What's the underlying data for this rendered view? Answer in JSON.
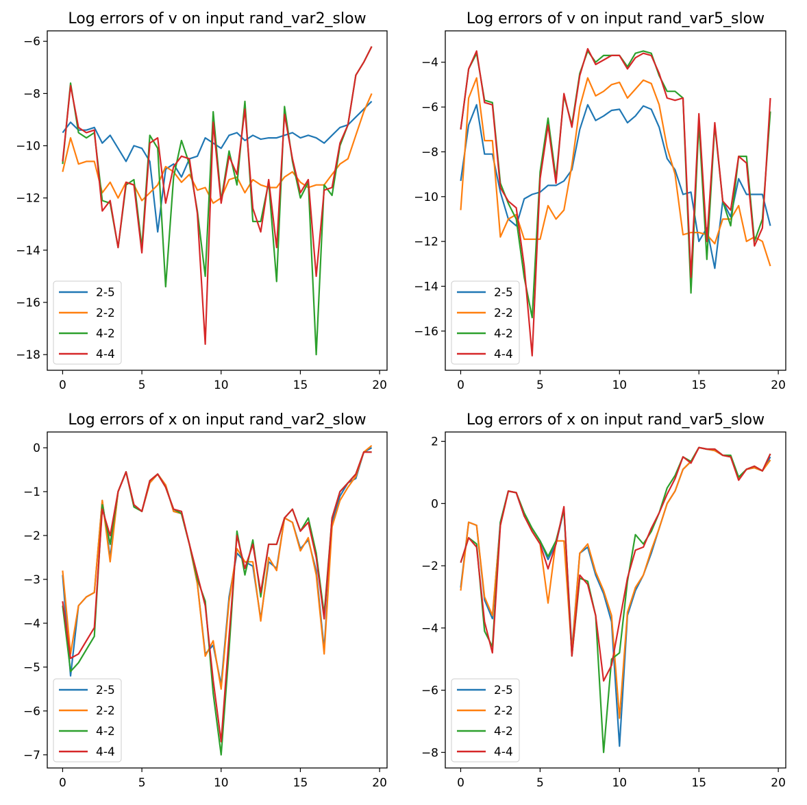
{
  "colors": {
    "2-5": "#1f77b4",
    "2-2": "#ff7f0e",
    "4-2": "#2ca02c",
    "4-4": "#d62728"
  },
  "chart_data": [
    {
      "type": "line",
      "title": "Log errors of v on input rand_var2_slow",
      "xlabel": "",
      "ylabel": "",
      "xlim": [
        -0.97,
        20.47
      ],
      "ylim": [
        -18.6,
        -5.6
      ],
      "xticks": [
        0,
        5,
        10,
        15,
        20
      ],
      "yticks": [
        -18,
        -16,
        -14,
        -12,
        -10,
        -8,
        -6
      ],
      "legend": "lower left",
      "x": [
        0,
        0.5,
        1,
        1.5,
        2,
        2.5,
        3,
        3.5,
        4,
        4.5,
        5,
        5.5,
        6,
        6.5,
        7,
        7.5,
        8,
        8.5,
        9,
        9.5,
        10,
        10.5,
        11,
        11.5,
        12,
        12.5,
        13,
        13.5,
        14,
        14.5,
        15,
        15.5,
        16,
        16.5,
        17,
        17.5,
        18,
        18.5,
        19,
        19.5
      ],
      "series": [
        {
          "name": "2-5",
          "values": [
            -9.5,
            -9.1,
            -9.4,
            -9.4,
            -9.3,
            -9.9,
            -9.6,
            -10.1,
            -10.6,
            -10.0,
            -10.1,
            -10.6,
            -13.3,
            -10.9,
            -10.7,
            -11.2,
            -10.5,
            -10.4,
            -9.7,
            -9.9,
            -10.1,
            -9.6,
            -9.5,
            -9.8,
            -9.6,
            -9.75,
            -9.7,
            -9.7,
            -9.6,
            -9.5,
            -9.7,
            -9.6,
            -9.7,
            -9.9,
            -9.6,
            -9.3,
            -9.2,
            -8.9,
            -8.6,
            -8.3
          ]
        },
        {
          "name": "2-2",
          "values": [
            -11.0,
            -9.7,
            -10.7,
            -10.6,
            -10.6,
            -11.8,
            -11.4,
            -12.0,
            -11.4,
            -11.5,
            -12.1,
            -11.8,
            -11.5,
            -10.8,
            -11.0,
            -11.4,
            -11.1,
            -11.7,
            -11.6,
            -12.2,
            -12.0,
            -11.3,
            -11.2,
            -11.8,
            -11.3,
            -11.5,
            -11.6,
            -11.6,
            -11.2,
            -11.0,
            -11.4,
            -11.6,
            -11.5,
            -11.5,
            -11.1,
            -10.7,
            -10.5,
            -9.6,
            -8.7,
            -8.0
          ]
        },
        {
          "name": "4-2",
          "values": [
            -10.7,
            -7.6,
            -9.5,
            -9.7,
            -9.5,
            -12.1,
            -12.2,
            -13.9,
            -11.5,
            -11.3,
            -13.9,
            -9.6,
            -10.1,
            -15.4,
            -11.2,
            -9.8,
            -10.7,
            -12.5,
            -15.0,
            -8.7,
            -12.1,
            -10.2,
            -11.5,
            -8.3,
            -12.9,
            -12.9,
            -11.4,
            -15.2,
            -8.5,
            -10.6,
            -12.0,
            -11.4,
            -18.0,
            -11.5,
            -11.9,
            -10.0,
            -9.2,
            -7.3,
            -6.8,
            -6.2
          ]
        },
        {
          "name": "4-4",
          "values": [
            -10.6,
            -7.7,
            -9.3,
            -9.5,
            -9.4,
            -12.5,
            -12.1,
            -13.9,
            -11.4,
            -11.5,
            -14.1,
            -9.9,
            -9.7,
            -12.2,
            -10.8,
            -10.4,
            -10.5,
            -12.6,
            -17.6,
            -9.1,
            -12.2,
            -10.4,
            -11.1,
            -8.6,
            -12.4,
            -13.3,
            -11.3,
            -13.9,
            -8.8,
            -10.5,
            -11.8,
            -11.3,
            -15.0,
            -11.7,
            -11.6,
            -9.9,
            -9.2,
            -7.3,
            -6.8,
            -6.2
          ]
        }
      ]
    },
    {
      "type": "line",
      "title": "Log errors of v on input rand_var5_slow",
      "xlabel": "",
      "ylabel": "",
      "xlim": [
        -0.97,
        20.47
      ],
      "ylim": [
        -17.75,
        -2.6
      ],
      "xticks": [
        0,
        5,
        10,
        15,
        20
      ],
      "yticks": [
        -16,
        -14,
        -12,
        -10,
        -8,
        -6,
        -4
      ],
      "legend": "lower left",
      "x": [
        0,
        0.5,
        1,
        1.5,
        2,
        2.5,
        3,
        3.5,
        4,
        4.5,
        5,
        5.5,
        6,
        6.5,
        7,
        7.5,
        8,
        8.5,
        9,
        9.5,
        10,
        10.5,
        11,
        11.5,
        12,
        12.5,
        13,
        13.5,
        14,
        14.5,
        15,
        15.5,
        16,
        16.5,
        17,
        17.5,
        18,
        18.5,
        19,
        19.5
      ],
      "series": [
        {
          "name": "2-5",
          "values": [
            -9.3,
            -6.8,
            -5.9,
            -8.1,
            -8.1,
            -9.8,
            -11.0,
            -11.3,
            -10.1,
            -9.9,
            -9.8,
            -9.5,
            -9.5,
            -9.3,
            -8.8,
            -7.0,
            -5.9,
            -6.6,
            -6.4,
            -6.15,
            -6.1,
            -6.7,
            -6.4,
            -5.95,
            -6.1,
            -6.9,
            -8.3,
            -8.8,
            -9.9,
            -9.8,
            -12.0,
            -11.4,
            -13.2,
            -10.2,
            -10.9,
            -9.2,
            -9.9,
            -9.9,
            -9.9,
            -11.3
          ]
        },
        {
          "name": "2-2",
          "values": [
            -10.6,
            -5.6,
            -4.7,
            -7.5,
            -7.5,
            -11.8,
            -11.0,
            -10.8,
            -11.9,
            -11.9,
            -11.9,
            -10.4,
            -11.0,
            -10.6,
            -8.6,
            -6.0,
            -4.7,
            -5.5,
            -5.3,
            -5.0,
            -4.9,
            -5.6,
            -5.2,
            -4.8,
            -4.95,
            -5.9,
            -7.8,
            -9.0,
            -11.7,
            -11.6,
            -11.6,
            -11.7,
            -12.1,
            -11.0,
            -11.0,
            -10.4,
            -12.0,
            -11.8,
            -12.0,
            -13.1
          ]
        },
        {
          "name": "4-2",
          "values": [
            -7.0,
            -4.3,
            -3.6,
            -5.7,
            -5.8,
            -9.4,
            -10.3,
            -11.0,
            -13.6,
            -15.4,
            -8.9,
            -6.5,
            -9.2,
            -5.5,
            -6.8,
            -4.5,
            -3.5,
            -4.0,
            -3.7,
            -3.7,
            -3.7,
            -4.2,
            -3.6,
            -3.5,
            -3.6,
            -4.6,
            -5.3,
            -5.3,
            -5.6,
            -14.3,
            -6.7,
            -12.8,
            -6.8,
            -10.2,
            -11.3,
            -8.2,
            -8.2,
            -12.0,
            -11.0,
            -6.2
          ]
        },
        {
          "name": "4-4",
          "values": [
            -7.0,
            -4.3,
            -3.5,
            -5.8,
            -5.9,
            -9.6,
            -10.2,
            -10.5,
            -13.1,
            -17.1,
            -9.2,
            -6.8,
            -9.4,
            -5.4,
            -6.9,
            -4.6,
            -3.4,
            -4.1,
            -3.9,
            -3.7,
            -3.7,
            -4.3,
            -3.8,
            -3.6,
            -3.7,
            -4.5,
            -5.6,
            -5.7,
            -5.6,
            -13.6,
            -6.3,
            -12.0,
            -6.7,
            -10.2,
            -10.6,
            -8.2,
            -8.5,
            -12.2,
            -11.4,
            -5.6
          ]
        }
      ]
    },
    {
      "type": "line",
      "title": "Log errors of x on input rand_var2_slow",
      "xlabel": "",
      "ylabel": "",
      "xlim": [
        -0.97,
        20.47
      ],
      "ylim": [
        -7.3,
        0.36
      ],
      "xticks": [
        0,
        5,
        10,
        15,
        20
      ],
      "yticks": [
        -7,
        -6,
        -5,
        -4,
        -3,
        -2,
        -1,
        0
      ],
      "legend": "lower left",
      "x": [
        0,
        0.5,
        1,
        1.5,
        2,
        2.5,
        3,
        3.5,
        4,
        4.5,
        5,
        5.5,
        6,
        6.5,
        7,
        7.5,
        8,
        8.5,
        9,
        9.5,
        10,
        10.5,
        11,
        11.5,
        12,
        12.5,
        13,
        13.5,
        14,
        14.5,
        15,
        15.5,
        16,
        16.5,
        17,
        17.5,
        18,
        18.5,
        19,
        19.5
      ],
      "series": [
        {
          "name": "2-5",
          "values": [
            -2.9,
            -5.2,
            -3.6,
            -3.4,
            -3.3,
            -1.2,
            -2.5,
            -1.0,
            -0.55,
            -1.3,
            -1.45,
            -0.8,
            -0.6,
            -0.85,
            -1.45,
            -1.5,
            -2.2,
            -3.1,
            -4.7,
            -4.5,
            -5.4,
            -3.4,
            -2.4,
            -2.6,
            -2.7,
            -3.9,
            -2.6,
            -2.75,
            -1.6,
            -1.7,
            -2.3,
            -2.1,
            -2.8,
            -4.6,
            -1.7,
            -1.1,
            -0.8,
            -0.7,
            -0.1,
            0.0
          ]
        },
        {
          "name": "2-2",
          "values": [
            -2.8,
            -4.7,
            -3.6,
            -3.4,
            -3.3,
            -1.2,
            -2.6,
            -1.0,
            -0.55,
            -1.3,
            -1.45,
            -0.8,
            -0.6,
            -0.85,
            -1.45,
            -1.5,
            -2.2,
            -3.1,
            -4.75,
            -4.4,
            -5.5,
            -3.5,
            -2.3,
            -2.6,
            -2.6,
            -3.95,
            -2.5,
            -2.8,
            -1.6,
            -1.7,
            -2.35,
            -2.05,
            -2.9,
            -4.7,
            -1.8,
            -1.2,
            -0.9,
            -0.65,
            -0.1,
            0.05
          ]
        },
        {
          "name": "4-2",
          "values": [
            -3.6,
            -5.1,
            -4.9,
            -4.6,
            -4.3,
            -1.3,
            -2.2,
            -1.0,
            -0.55,
            -1.35,
            -1.45,
            -0.75,
            -0.6,
            -0.9,
            -1.4,
            -1.5,
            -2.2,
            -3.0,
            -3.5,
            -5.6,
            -7.0,
            -4.6,
            -1.9,
            -2.9,
            -2.1,
            -3.4,
            -2.2,
            -2.2,
            -1.6,
            -1.4,
            -1.9,
            -1.6,
            -2.4,
            -3.8,
            -1.6,
            -1.0,
            -0.8,
            -0.6,
            -0.1,
            -0.1
          ]
        },
        {
          "name": "4-4",
          "values": [
            -3.5,
            -4.8,
            -4.7,
            -4.4,
            -4.1,
            -1.4,
            -2.0,
            -1.0,
            -0.55,
            -1.3,
            -1.45,
            -0.75,
            -0.6,
            -0.9,
            -1.4,
            -1.45,
            -2.2,
            -2.9,
            -3.6,
            -5.3,
            -6.7,
            -4.3,
            -2.0,
            -2.75,
            -2.2,
            -3.3,
            -2.2,
            -2.2,
            -1.6,
            -1.4,
            -1.9,
            -1.7,
            -2.5,
            -3.9,
            -1.6,
            -1.0,
            -0.8,
            -0.6,
            -0.1,
            -0.1
          ]
        }
      ]
    },
    {
      "type": "line",
      "title": "Log errors of x on input rand_var5_slow",
      "xlabel": "",
      "ylabel": "",
      "xlim": [
        -0.97,
        20.47
      ],
      "ylim": [
        -8.5,
        2.3
      ],
      "xticks": [
        0,
        5,
        10,
        15,
        20
      ],
      "yticks": [
        -8,
        -6,
        -4,
        -2,
        0,
        2
      ],
      "legend": "lower left",
      "x": [
        0,
        0.5,
        1,
        1.5,
        2,
        2.5,
        3,
        3.5,
        4,
        4.5,
        5,
        5.5,
        6,
        6.5,
        7,
        7.5,
        8,
        8.5,
        9,
        9.5,
        10,
        10.5,
        11,
        11.5,
        12,
        12.5,
        13,
        13.5,
        14,
        14.5,
        15,
        15.5,
        16,
        16.5,
        17,
        17.5,
        18,
        18.5,
        19,
        19.5
      ],
      "series": [
        {
          "name": "2-5",
          "values": [
            -2.7,
            -0.6,
            -0.7,
            -3.1,
            -3.7,
            -0.6,
            0.4,
            0.35,
            -0.4,
            -0.8,
            -1.2,
            -1.8,
            -1.3,
            -0.2,
            -4.7,
            -1.6,
            -1.4,
            -2.3,
            -2.9,
            -3.8,
            -7.8,
            -3.6,
            -2.8,
            -2.3,
            -1.6,
            -0.8,
            0.0,
            0.4,
            1.1,
            1.35,
            1.8,
            1.75,
            1.7,
            1.55,
            1.5,
            0.8,
            1.1,
            1.15,
            1.05,
            1.5
          ]
        },
        {
          "name": "2-2",
          "values": [
            -2.8,
            -0.6,
            -0.7,
            -3.0,
            -3.6,
            -0.7,
            0.4,
            0.35,
            -0.35,
            -0.9,
            -1.3,
            -3.2,
            -1.2,
            -1.2,
            -4.8,
            -1.6,
            -1.3,
            -2.2,
            -2.8,
            -3.6,
            -6.9,
            -3.5,
            -2.7,
            -2.3,
            -1.5,
            -0.8,
            0.0,
            0.4,
            1.1,
            1.35,
            1.8,
            1.75,
            1.7,
            1.55,
            1.5,
            0.8,
            1.1,
            1.15,
            1.05,
            1.4
          ]
        },
        {
          "name": "4-2",
          "values": [
            -1.9,
            -1.1,
            -1.3,
            -4.1,
            -4.6,
            -0.6,
            0.4,
            0.35,
            -0.3,
            -0.8,
            -1.2,
            -1.7,
            -1.2,
            -0.2,
            -4.9,
            -2.4,
            -2.5,
            -3.6,
            -8.0,
            -5.0,
            -4.8,
            -2.5,
            -1.0,
            -1.3,
            -0.9,
            -0.3,
            0.5,
            0.9,
            1.5,
            1.35,
            1.8,
            1.75,
            1.75,
            1.55,
            1.55,
            0.85,
            1.1,
            1.2,
            1.05,
            1.6
          ]
        },
        {
          "name": "4-4",
          "values": [
            -1.9,
            -1.1,
            -1.4,
            -3.8,
            -4.8,
            -0.7,
            0.4,
            0.35,
            -0.4,
            -0.9,
            -1.3,
            -2.1,
            -1.3,
            -0.1,
            -4.9,
            -2.3,
            -2.6,
            -3.6,
            -5.7,
            -5.2,
            -3.8,
            -2.4,
            -1.5,
            -1.4,
            -0.8,
            -0.3,
            0.3,
            0.8,
            1.5,
            1.3,
            1.8,
            1.75,
            1.75,
            1.55,
            1.5,
            0.75,
            1.1,
            1.2,
            1.05,
            1.6
          ]
        }
      ]
    }
  ]
}
